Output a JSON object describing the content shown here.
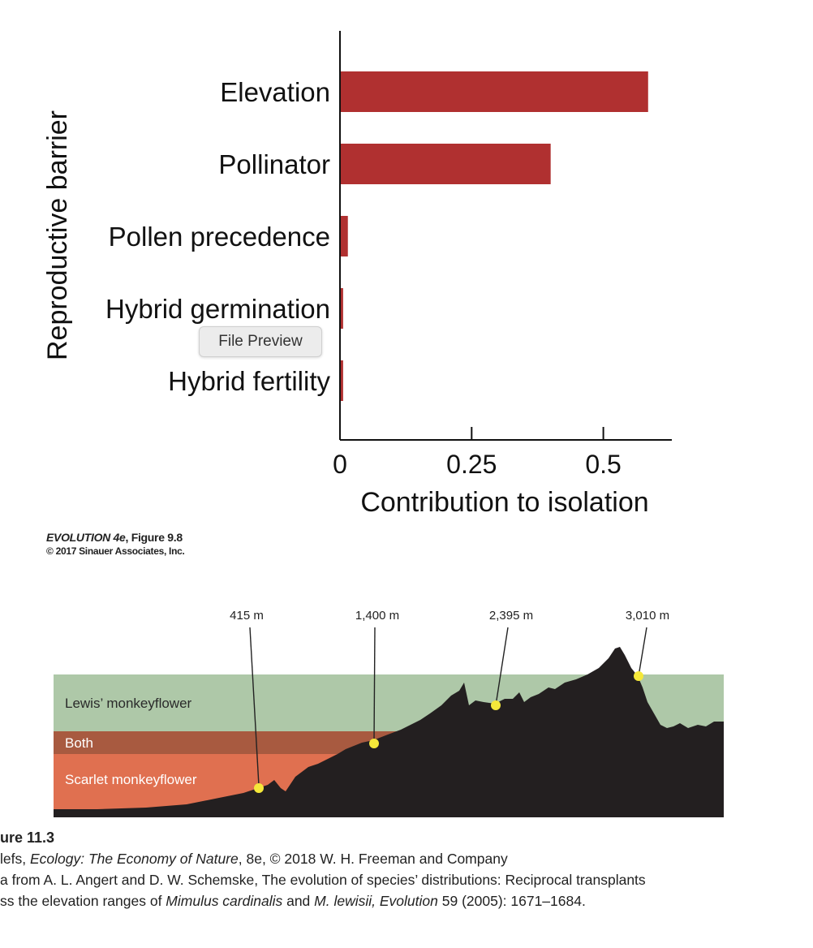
{
  "chart_data": {
    "type": "bar",
    "orientation": "horizontal",
    "categories": [
      "Elevation",
      "Pollinator",
      "Pollen precedence",
      "Hybrid germination",
      "Hybrid fertility"
    ],
    "values": [
      0.585,
      0.4,
      0.015,
      0.006,
      0.006
    ],
    "xlabel": "Contribution to isolation",
    "ylabel": "Reproductive barrier",
    "xlim": [
      0,
      0.63
    ],
    "xticks": [
      0,
      0.25,
      0.5
    ],
    "xtick_labels": [
      "0",
      "0.25",
      "0.5"
    ],
    "bar_color": "#b03030"
  },
  "overlay": {
    "file_preview_label": "File Preview"
  },
  "credit": {
    "book": "EVOLUTION 4e",
    "figure": ", Figure 9.8",
    "copyright": "© 2017 Sinauer Associates, Inc."
  },
  "profile": {
    "elevations": [
      "415 m",
      "1,400 m",
      "2,395 m",
      "3,010 m"
    ],
    "bands": {
      "upper": "Lewis’ monkeyflower",
      "middle": "Both",
      "lower": "Scarlet monkeyflower"
    },
    "colors": {
      "upper": "#aec8a8",
      "middle": "#a85a40",
      "lower": "#e07050",
      "terrain": "#231f20",
      "marker": "#f5e83a"
    }
  },
  "figure_caption": {
    "title": "ure 11.3",
    "line1_pre": "lefs, ",
    "line1_italic": "Ecology: The Economy of Nature",
    "line1_post": ", 8e, © 2018 W. H. Freeman and Company",
    "line2": "a from A. L. Angert and D. W. Schemske, The evolution of species’ distributions: Reciprocal transplants",
    "line3_pre": "ss the elevation ranges of ",
    "line3_italic1": "Mimulus cardinalis",
    "line3_mid": " and ",
    "line3_italic2": "M. lewisii, Evolution",
    "line3_post": " 59 (2005): 1671–1684."
  }
}
